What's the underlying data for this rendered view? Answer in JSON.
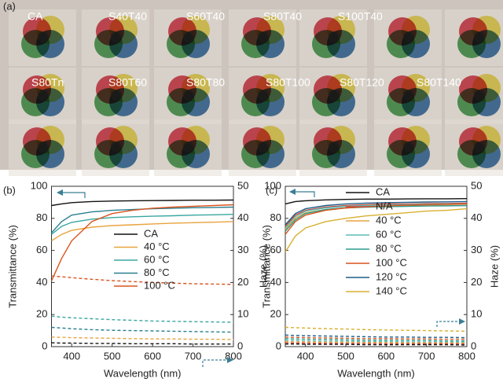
{
  "panel_a": {
    "label": "(a)",
    "samples": [
      "CA",
      "S40T40",
      "S60T40",
      "S80T40",
      "S100T40",
      "S80Tn",
      "S80T60",
      "S80T80",
      "S80T100",
      "S80T120",
      "S80T140"
    ]
  },
  "chart_data": [
    {
      "type": "line",
      "panel_label": "(b)",
      "xlabel": "Wavelength (nm)",
      "ylabel": "Transmittance (%)",
      "y2label": "Haze (%)",
      "x": [
        350,
        375,
        400,
        450,
        500,
        550,
        600,
        650,
        700,
        750,
        800
      ],
      "xlim": [
        350,
        800
      ],
      "xticks": [
        400,
        500,
        600,
        700,
        800
      ],
      "ylim": [
        0,
        100
      ],
      "yticks": [
        0,
        20,
        40,
        60,
        80,
        100
      ],
      "y2lim": [
        0,
        50
      ],
      "y2ticks": [
        0,
        10,
        20,
        30,
        40,
        50
      ],
      "series": [
        {
          "name": "CA",
          "color": "#111111",
          "values": [
            88,
            89,
            89.8,
            90.5,
            90.8,
            91,
            91.1,
            91.2,
            91.3,
            91.3,
            91.4
          ]
        },
        {
          "name": "40 °C",
          "color": "#e8a33d",
          "values": [
            66,
            70,
            72.5,
            74.5,
            75.5,
            76,
            76.5,
            77,
            77.3,
            77.6,
            78
          ]
        },
        {
          "name": "60 °C",
          "color": "#3aa6a0",
          "values": [
            70,
            75,
            77.5,
            79.5,
            80.5,
            81,
            81.3,
            81.6,
            82,
            82.2,
            82.5
          ]
        },
        {
          "name": "80 °C",
          "color": "#2a7f8f",
          "values": [
            71,
            78,
            82,
            84,
            85,
            85.5,
            86,
            86.3,
            86.6,
            86.8,
            87
          ]
        },
        {
          "name": "100 °C",
          "color": "#d9541e",
          "values": [
            41,
            55,
            66,
            78,
            83,
            85,
            86.3,
            87,
            87.5,
            88,
            88.5
          ]
        },
        {
          "color": "#d9541e",
          "axis": "y2",
          "style": "dashed",
          "values": [
            22,
            21.8,
            21.5,
            21,
            20.6,
            20.3,
            20,
            19.8,
            19.6,
            19.5,
            19.4
          ]
        },
        {
          "color": "#3aa6a0",
          "axis": "y2",
          "style": "dashed",
          "values": [
            9.5,
            9.2,
            9,
            8.7,
            8.4,
            8.2,
            8,
            7.9,
            7.8,
            7.7,
            7.6
          ]
        },
        {
          "color": "#2a7f8f",
          "axis": "y2",
          "style": "dashed",
          "values": [
            6,
            5.8,
            5.6,
            5.3,
            5.1,
            5,
            4.9,
            4.8,
            4.7,
            4.6,
            4.5
          ]
        },
        {
          "color": "#e8a33d",
          "axis": "y2",
          "style": "dashed",
          "values": [
            3,
            2.9,
            2.8,
            2.7,
            2.6,
            2.5,
            2.4,
            2.4,
            2.3,
            2.3,
            2.2
          ]
        },
        {
          "color": "#111111",
          "axis": "y2",
          "style": "dashed",
          "values": [
            1.2,
            1.1,
            1.1,
            1,
            1,
            0.9,
            0.9,
            0.9,
            0.8,
            0.8,
            0.8
          ]
        }
      ]
    },
    {
      "type": "line",
      "panel_label": "(c)",
      "xlabel": "Wavelength (nm)",
      "ylabel": "Transmittance (%)",
      "y2label": "Haze (%)",
      "x": [
        350,
        375,
        400,
        450,
        500,
        550,
        600,
        650,
        700,
        750,
        800
      ],
      "xlim": [
        350,
        800
      ],
      "xticks": [
        400,
        500,
        600,
        700,
        800
      ],
      "ylim": [
        0,
        100
      ],
      "yticks": [
        0,
        20,
        40,
        60,
        80,
        100
      ],
      "y2lim": [
        0,
        50
      ],
      "y2ticks": [
        0,
        10,
        20,
        30,
        40,
        50
      ],
      "series": [
        {
          "name": "CA",
          "color": "#111111",
          "values": [
            89,
            90.5,
            91,
            91.5,
            91.8,
            92,
            92,
            92.1,
            92.2,
            92.2,
            92.3
          ]
        },
        {
          "name": "N/A",
          "color": "#d04a3a",
          "values": [
            75,
            82,
            85,
            87,
            88,
            88.5,
            89,
            89,
            89.2,
            89.3,
            89.5
          ]
        },
        {
          "name": "40 °C",
          "color": "#e8a33d",
          "values": [
            73,
            80,
            83.5,
            85.5,
            86.5,
            87,
            87.3,
            87.6,
            87.8,
            88,
            88
          ]
        },
        {
          "name": "60 °C",
          "color": "#5bbcb8",
          "values": [
            74,
            81,
            84.5,
            86.5,
            87.5,
            88,
            88.3,
            88.6,
            88.8,
            89,
            89
          ]
        },
        {
          "name": "80 °C",
          "color": "#2a9d8f",
          "values": [
            72,
            79,
            83,
            85.5,
            86.5,
            87,
            87.3,
            87.5,
            87.7,
            87.8,
            88
          ]
        },
        {
          "name": "100 °C",
          "color": "#d9541e",
          "values": [
            70,
            78,
            82,
            85,
            86.5,
            87.3,
            87.8,
            88.2,
            88.5,
            88.7,
            89
          ]
        },
        {
          "name": "120 °C",
          "color": "#1f5f8b",
          "values": [
            76,
            83,
            86,
            88,
            89,
            89.5,
            89.8,
            90,
            90.2,
            90.3,
            90.5
          ]
        },
        {
          "name": "140 °C",
          "color": "#d8b030",
          "values": [
            59,
            69,
            74,
            78,
            80,
            81.5,
            82.5,
            83.5,
            84.5,
            85,
            86
          ]
        },
        {
          "color": "#d8b030",
          "axis": "y2",
          "style": "dashed",
          "values": [
            6,
            5.9,
            5.8,
            5.6,
            5.5,
            5.3,
            5.2,
            5.1,
            5,
            4.9,
            4.8
          ]
        },
        {
          "color": "#1f5f8b",
          "axis": "y2",
          "style": "dashed",
          "values": [
            3.6,
            3.5,
            3.4,
            3.3,
            3.2,
            3.1,
            3,
            3,
            2.9,
            2.9,
            2.8
          ]
        },
        {
          "color": "#d9541e",
          "axis": "y2",
          "style": "dashed",
          "values": [
            3,
            2.9,
            2.8,
            2.7,
            2.6,
            2.5,
            2.5,
            2.4,
            2.4,
            2.3,
            2.3
          ]
        },
        {
          "color": "#2a9d8f",
          "axis": "y2",
          "style": "dashed",
          "values": [
            2.5,
            2.4,
            2.3,
            2.2,
            2.1,
            2,
            2,
            1.9,
            1.9,
            1.8,
            1.8
          ]
        },
        {
          "color": "#5bbcb8",
          "axis": "y2",
          "style": "dashed",
          "values": [
            2,
            1.9,
            1.8,
            1.7,
            1.7,
            1.6,
            1.6,
            1.5,
            1.5,
            1.5,
            1.4
          ]
        },
        {
          "color": "#e8a33d",
          "axis": "y2",
          "style": "dashed",
          "values": [
            1.6,
            1.5,
            1.5,
            1.4,
            1.4,
            1.3,
            1.3,
            1.2,
            1.2,
            1.2,
            1.1
          ]
        },
        {
          "color": "#d04a3a",
          "axis": "y2",
          "style": "dashed",
          "values": [
            1.2,
            1.1,
            1.1,
            1,
            1,
            1,
            0.9,
            0.9,
            0.9,
            0.9,
            0.8
          ]
        },
        {
          "color": "#111111",
          "axis": "y2",
          "style": "dashed",
          "values": [
            0.8,
            0.8,
            0.7,
            0.7,
            0.7,
            0.6,
            0.6,
            0.6,
            0.6,
            0.6,
            0.5
          ]
        }
      ]
    }
  ]
}
